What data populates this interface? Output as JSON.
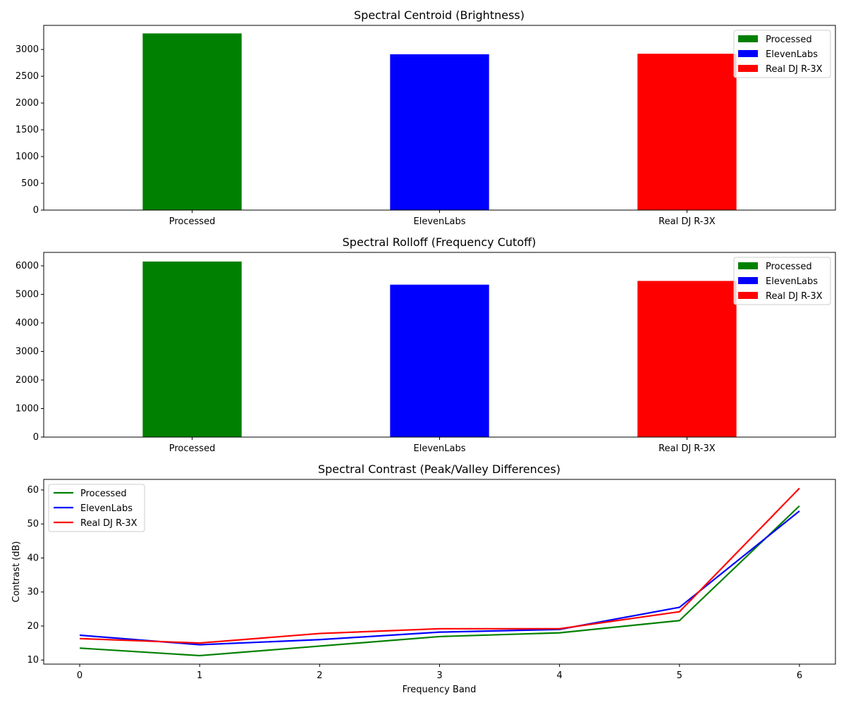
{
  "chart_data": [
    {
      "type": "bar",
      "title": "Spectral Centroid (Brightness)",
      "xlabel": "",
      "ylabel": "",
      "categories": [
        "Processed",
        "ElevenLabs",
        "Real DJ R-3X"
      ],
      "values": [
        3300,
        2910,
        2920
      ],
      "colors": [
        "#008000",
        "#0000ff",
        "#ff0000"
      ],
      "ylim": [
        0,
        3450
      ],
      "yticks": [
        0,
        500,
        1000,
        1500,
        2000,
        2500,
        3000
      ],
      "grid": false,
      "legend": {
        "placement": "upper-right",
        "entries": [
          {
            "label": "Processed",
            "color": "#008000"
          },
          {
            "label": "ElevenLabs",
            "color": "#0000ff"
          },
          {
            "label": "Real DJ R-3X",
            "color": "#ff0000"
          }
        ]
      }
    },
    {
      "type": "bar",
      "title": "Spectral Rolloff (Frequency Cutoff)",
      "xlabel": "",
      "ylabel": "",
      "categories": [
        "Processed",
        "ElevenLabs",
        "Real DJ R-3X"
      ],
      "values": [
        6150,
        5340,
        5470
      ],
      "colors": [
        "#008000",
        "#0000ff",
        "#ff0000"
      ],
      "ylim": [
        0,
        6470
      ],
      "yticks": [
        0,
        1000,
        2000,
        3000,
        4000,
        5000,
        6000
      ],
      "grid": false,
      "legend": {
        "placement": "upper-right",
        "entries": [
          {
            "label": "Processed",
            "color": "#008000"
          },
          {
            "label": "ElevenLabs",
            "color": "#0000ff"
          },
          {
            "label": "Real DJ R-3X",
            "color": "#ff0000"
          }
        ]
      }
    },
    {
      "type": "line",
      "title": "Spectral Contrast (Peak/Valley Differences)",
      "xlabel": "Frequency Band",
      "ylabel": "Contrast (dB)",
      "x": [
        0,
        1,
        2,
        3,
        4,
        5,
        6
      ],
      "series": [
        {
          "name": "Processed",
          "color": "#008000",
          "values": [
            13.5,
            11.3,
            14.1,
            16.9,
            18.0,
            21.6,
            55.3
          ]
        },
        {
          "name": "ElevenLabs",
          "color": "#0000ff",
          "values": [
            17.3,
            14.5,
            16.0,
            18.2,
            19.0,
            25.5,
            53.8
          ]
        },
        {
          "name": "Real DJ R-3X",
          "color": "#ff0000",
          "values": [
            16.3,
            15.0,
            17.8,
            19.2,
            19.2,
            24.2,
            60.5
          ]
        }
      ],
      "xlim": [
        -0.3,
        6.3
      ],
      "ylim": [
        8.8,
        63.1
      ],
      "xticks": [
        0,
        1,
        2,
        3,
        4,
        5,
        6
      ],
      "yticks": [
        10,
        20,
        30,
        40,
        50,
        60
      ],
      "grid": false,
      "legend": {
        "placement": "upper-left",
        "entries": [
          {
            "label": "Processed",
            "color": "#008000"
          },
          {
            "label": "ElevenLabs",
            "color": "#0000ff"
          },
          {
            "label": "Real DJ R-3X",
            "color": "#ff0000"
          }
        ]
      }
    }
  ]
}
